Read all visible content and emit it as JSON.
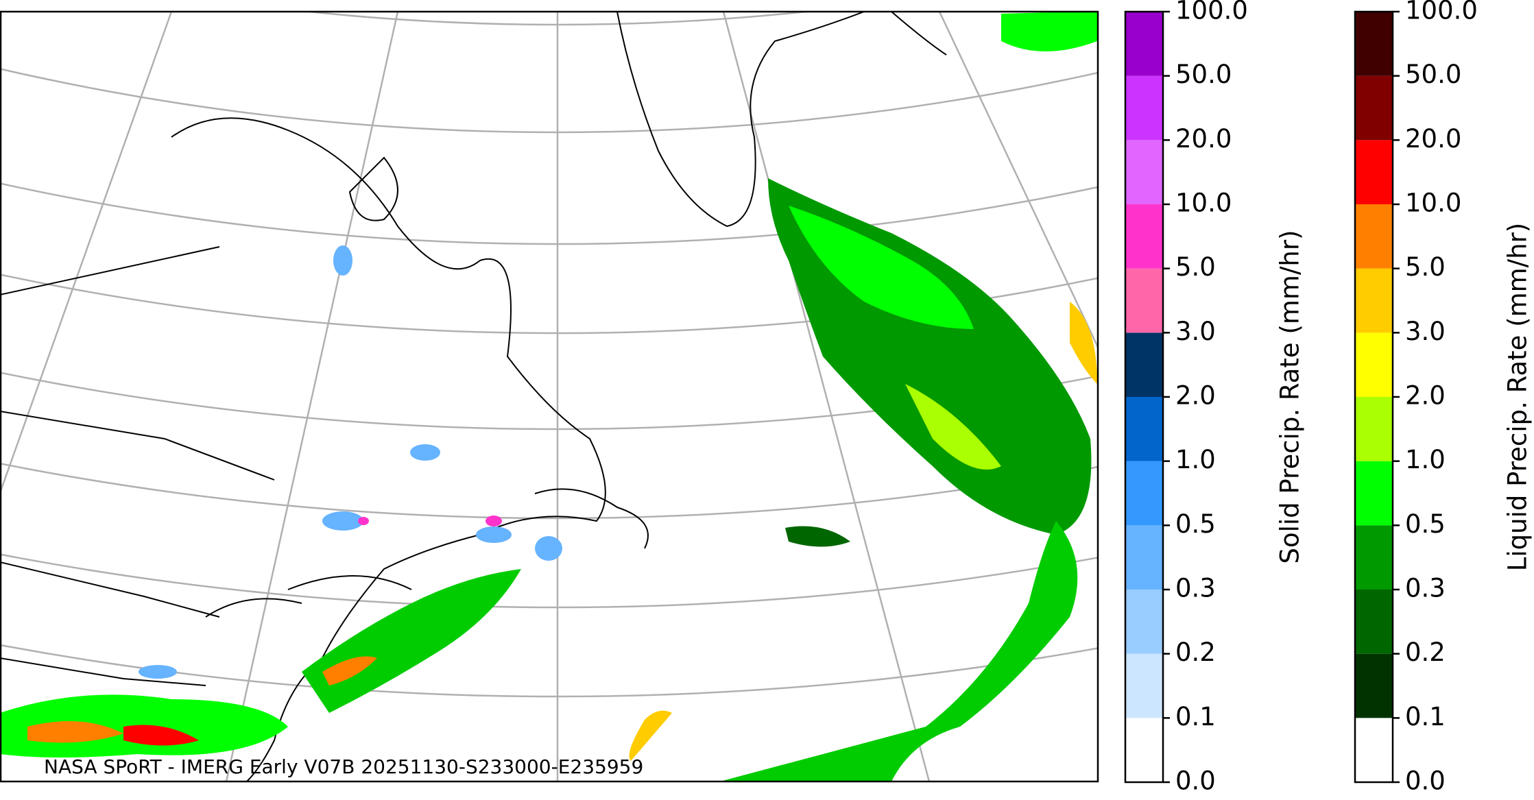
{
  "map": {
    "caption": "NASA SPoRT - IMERG Early V07B 20251130-S233000-E235959"
  },
  "colorbars": [
    {
      "label": "Solid Precip. Rate (mm/hr)",
      "ticks": [
        {
          "value": 0,
          "label": "0.0"
        },
        {
          "value": 0.1,
          "label": "0.1"
        },
        {
          "value": 0.2,
          "label": "0.2"
        },
        {
          "value": 0.3,
          "label": "0.3"
        },
        {
          "value": 0.5,
          "label": "0.5"
        },
        {
          "value": 1,
          "label": "1.0"
        },
        {
          "value": 2,
          "label": "2.0"
        },
        {
          "value": 3,
          "label": "3.0"
        },
        {
          "value": 5,
          "label": "5.0"
        },
        {
          "value": 10,
          "label": "10.0"
        },
        {
          "value": 20,
          "label": "20.0"
        },
        {
          "value": 50,
          "label": "50.0"
        },
        {
          "value": 100,
          "label": "100.0"
        }
      ],
      "colors": [
        "#ffffff",
        "#cce6ff",
        "#99ccff",
        "#66b3ff",
        "#3399ff",
        "#0066cc",
        "#003366",
        "#ff66aa",
        "#ff33cc",
        "#e066ff",
        "#cc33ff",
        "#9900cc"
      ]
    },
    {
      "label": "Liquid Precip. Rate (mm/hr)",
      "ticks": [
        {
          "value": 0,
          "label": "0.0"
        },
        {
          "value": 0.1,
          "label": "0.1"
        },
        {
          "value": 0.2,
          "label": "0.2"
        },
        {
          "value": 0.3,
          "label": "0.3"
        },
        {
          "value": 0.5,
          "label": "0.5"
        },
        {
          "value": 1,
          "label": "1.0"
        },
        {
          "value": 2,
          "label": "2.0"
        },
        {
          "value": 3,
          "label": "3.0"
        },
        {
          "value": 5,
          "label": "5.0"
        },
        {
          "value": 10,
          "label": "10.0"
        },
        {
          "value": 20,
          "label": "20.0"
        },
        {
          "value": 50,
          "label": "50.0"
        },
        {
          "value": 100,
          "label": "100.0"
        }
      ],
      "colors": [
        "#ffffff",
        "#003300",
        "#006600",
        "#009900",
        "#00ff00",
        "#aaff00",
        "#ffff00",
        "#ffcc00",
        "#ff8000",
        "#ff0000",
        "#800000",
        "#400000"
      ]
    }
  ]
}
